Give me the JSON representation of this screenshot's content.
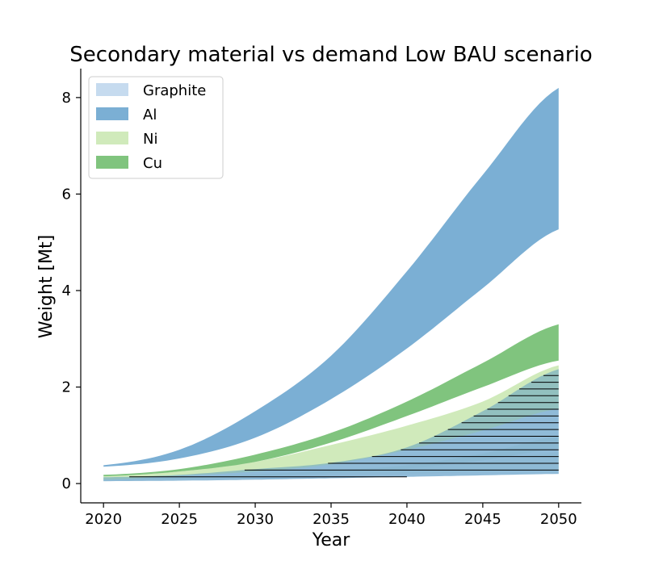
{
  "chart_data": {
    "type": "area",
    "title": "Secondary material vs demand Low BAU scenario",
    "xlabel": "Year",
    "ylabel": "Weight [Mt]",
    "xlim": [
      2018.5,
      2051.5
    ],
    "ylim": [
      -0.4,
      8.6
    ],
    "xticks": [
      2020,
      2025,
      2030,
      2035,
      2040,
      2045,
      2050
    ],
    "yticks": [
      0,
      2,
      4,
      6,
      8
    ],
    "legend": {
      "placement": "top-left",
      "entries": [
        "Graphite",
        "Al",
        "Ni",
        "Cu"
      ]
    },
    "colors": {
      "Graphite": "#c6dbef",
      "Al": "#7bafd4",
      "Ni": "#d0eabb",
      "Cu": "#80c47e",
      "hatch": "#000000"
    },
    "x": [
      2020,
      2025,
      2030,
      2035,
      2040,
      2045,
      2050
    ],
    "series": [
      {
        "name": "Ni",
        "lower": [
          0.05,
          0.08,
          0.13,
          0.18,
          0.2,
          0.24,
          0.27
        ],
        "upper": [
          0.1,
          0.13,
          0.18,
          0.24,
          0.32,
          0.45,
          0.65
        ]
      },
      {
        "name": "Cu",
        "lower": [
          0.08,
          0.11,
          0.16,
          0.22,
          0.31,
          0.48,
          0.72
        ],
        "upper": [
          0.12,
          0.14,
          0.19,
          0.27,
          0.38,
          0.62,
          0.98
        ]
      },
      {
        "name": "Graphite",
        "lower": [
          0.05,
          0.06,
          0.08,
          0.11,
          0.14,
          0.17,
          0.2
        ],
        "upper": [
          0.13,
          0.18,
          0.3,
          0.43,
          0.75,
          1.5,
          2.37
        ]
      },
      {
        "name": "Ni",
        "lower": [
          0.08,
          0.16,
          0.25,
          0.4,
          0.7,
          1.1,
          1.55
        ],
        "upper": [
          0.15,
          0.25,
          0.45,
          0.8,
          1.2,
          1.7,
          2.45
        ]
      },
      {
        "name": "Cu",
        "lower": [
          0.15,
          0.25,
          0.45,
          0.85,
          1.4,
          2.0,
          2.55
        ],
        "upper": [
          0.18,
          0.3,
          0.6,
          1.05,
          1.7,
          2.5,
          3.3
        ]
      },
      {
        "name": "Al",
        "lower": [
          0.35,
          0.52,
          0.95,
          1.75,
          2.8,
          4.05,
          5.27
        ],
        "upper": [
          0.38,
          0.7,
          1.5,
          2.65,
          4.4,
          6.4,
          8.2
        ]
      }
    ]
  }
}
